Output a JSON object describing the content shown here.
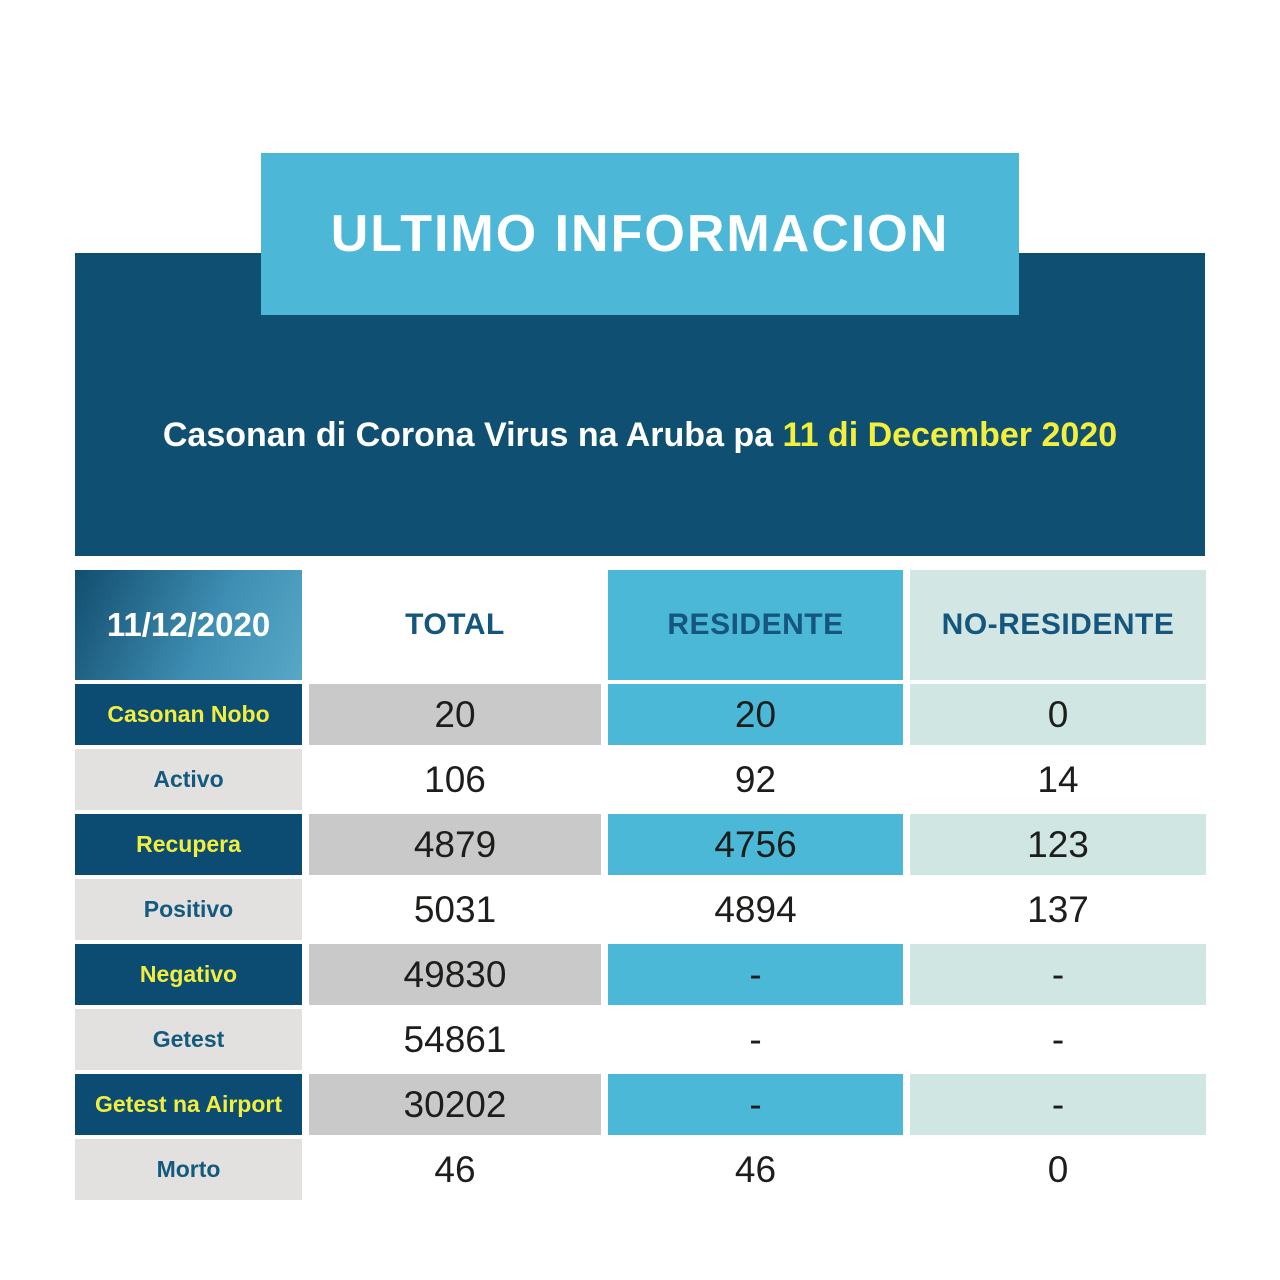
{
  "banner": {
    "title": "ULTIMO INFORMACION"
  },
  "subtitle": {
    "prefix": "Casonan di Corona Virus na Aruba pa ",
    "date": "11 di December 2020"
  },
  "table": {
    "headers": {
      "date": "11/12/2020",
      "total": "TOTAL",
      "residente": "RESIDENTE",
      "no_residente": "NO-RESIDENTE"
    },
    "rows": [
      {
        "label": "Casonan Nobo",
        "total": "20",
        "residente": "20",
        "no_residente": "0"
      },
      {
        "label": "Activo",
        "total": "106",
        "residente": "92",
        "no_residente": "14"
      },
      {
        "label": "Recupera",
        "total": "4879",
        "residente": "4756",
        "no_residente": "123"
      },
      {
        "label": "Positivo",
        "total": "5031",
        "residente": "4894",
        "no_residente": "137"
      },
      {
        "label": "Negativo",
        "total": "49830",
        "residente": "-",
        "no_residente": "-"
      },
      {
        "label": "Getest",
        "total": "54861",
        "residente": "-",
        "no_residente": "-"
      },
      {
        "label": "Getest na Airport",
        "total": "30202",
        "residente": "-",
        "no_residente": "-"
      },
      {
        "label": "Morto",
        "total": "46",
        "residente": "46",
        "no_residente": "0"
      }
    ]
  },
  "colors": {
    "title_box": "#4db7d8",
    "dark_banner": "#0e4f72",
    "highlight_yellow": "#f4ef3b",
    "label_navy": "#0d4c72",
    "label_yellow": "#f2ee3e",
    "label_gray": "#e2e1df",
    "data_gray": "#c9c9c9",
    "residente_blue": "#4bb8d7",
    "no_residente_pale": "#d0e6e2",
    "header_text_blue": "#15567e"
  },
  "chart_data": {
    "type": "table",
    "title": "ULTIMO INFORMACION",
    "subtitle": "Casonan di Corona Virus na Aruba pa 11 di December 2020",
    "date": "11/12/2020",
    "columns": [
      "11/12/2020",
      "TOTAL",
      "RESIDENTE",
      "NO-RESIDENTE"
    ],
    "rows": [
      [
        "Casonan Nobo",
        20,
        20,
        0
      ],
      [
        "Activo",
        106,
        92,
        14
      ],
      [
        "Recupera",
        4879,
        4756,
        123
      ],
      [
        "Positivo",
        5031,
        4894,
        137
      ],
      [
        "Negativo",
        49830,
        null,
        null
      ],
      [
        "Getest",
        54861,
        null,
        null
      ],
      [
        "Getest na Airport",
        30202,
        null,
        null
      ],
      [
        "Morto",
        46,
        46,
        0
      ]
    ]
  }
}
